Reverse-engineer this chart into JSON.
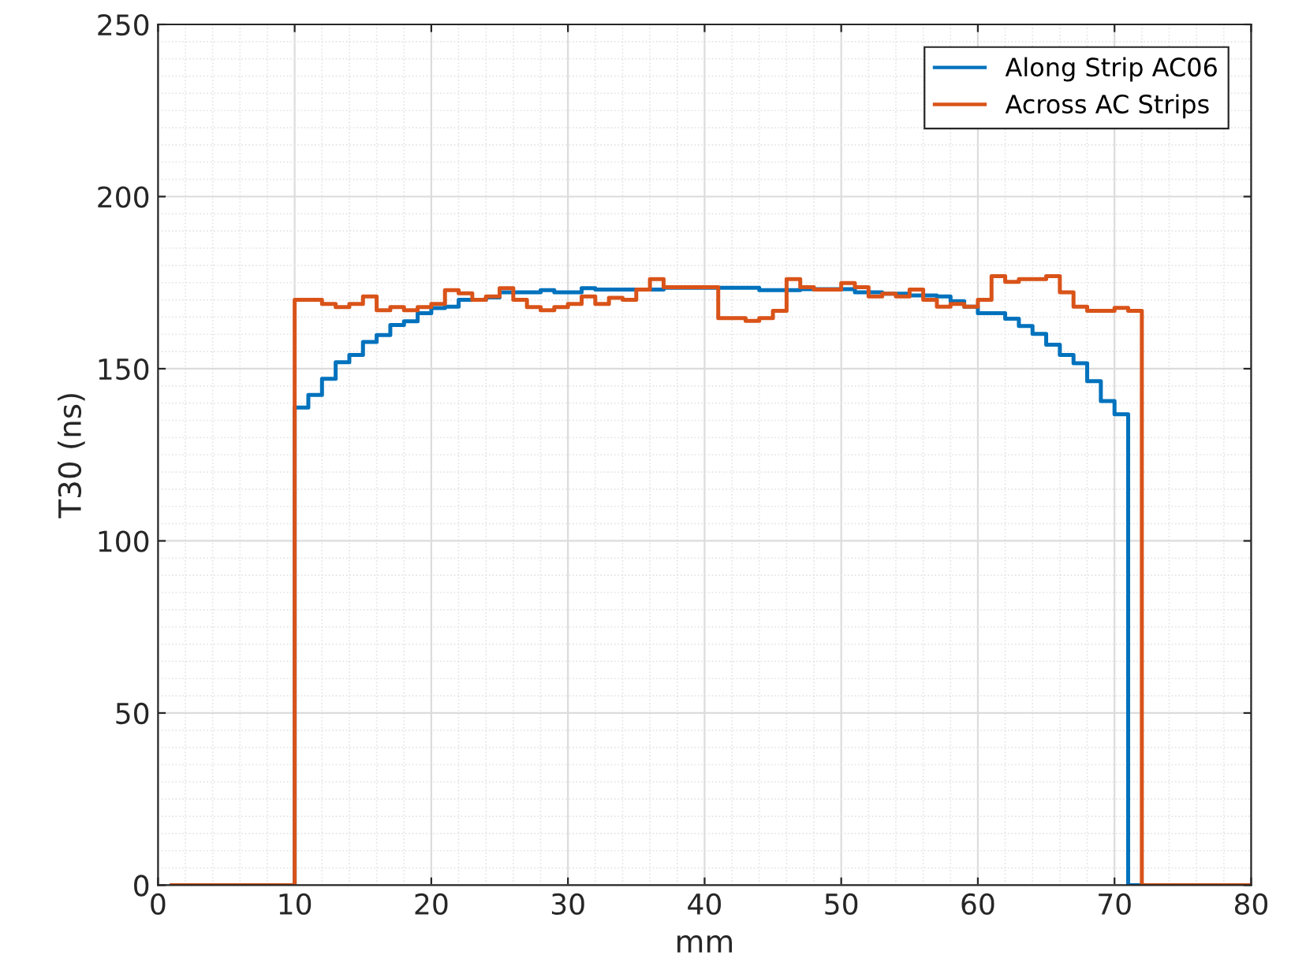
{
  "chart_data": {
    "type": "step",
    "xlabel": "mm",
    "ylabel": "T30 (ns)",
    "xlim": [
      0,
      80
    ],
    "xticks": [
      0,
      10,
      20,
      30,
      40,
      50,
      60,
      70,
      80
    ],
    "ylim": [
      0,
      250
    ],
    "yticks": [
      0,
      50,
      100,
      150,
      200,
      250
    ],
    "grid": true,
    "legend": "top right",
    "series": [
      {
        "name": "Along Strip AC06",
        "color": "#0072bd",
        "x": [
          1,
          10,
          11,
          12,
          13,
          14,
          15,
          16,
          17,
          18,
          19,
          20,
          21,
          22,
          23,
          24,
          25,
          26,
          27,
          28,
          29,
          30,
          31,
          32,
          33,
          34,
          35,
          36,
          37,
          38,
          39,
          40,
          41,
          42,
          43,
          44,
          45,
          46,
          47,
          48,
          49,
          50,
          51,
          52,
          53,
          54,
          55,
          56,
          57,
          58,
          59,
          60,
          61,
          62,
          63,
          64,
          65,
          66,
          67,
          68,
          69,
          70,
          71,
          80
        ],
        "values": [
          0,
          138.7,
          142.4,
          147.1,
          151.9,
          154.0,
          157.8,
          159.8,
          162.7,
          163.8,
          166.1,
          167.6,
          168.0,
          170.0,
          170.0,
          170.7,
          172.2,
          172.2,
          172.2,
          172.8,
          172.2,
          172.2,
          173.4,
          173.0,
          173.0,
          173.0,
          173.0,
          173.0,
          173.5,
          173.5,
          173.5,
          173.5,
          173.5,
          173.5,
          173.5,
          172.8,
          172.8,
          172.8,
          173.1,
          173.1,
          173.1,
          173.1,
          172.2,
          172.2,
          171.8,
          171.8,
          171.3,
          171.3,
          171.0,
          169.6,
          168.0,
          166.1,
          166.1,
          164.5,
          162.4,
          160.1,
          157.0,
          154.0,
          151.6,
          146.4,
          140.6,
          136.8,
          0,
          0
        ]
      },
      {
        "name": "Across AC Strips",
        "color": "#d95319",
        "x": [
          1,
          10,
          11,
          12,
          13,
          14,
          15,
          16,
          17,
          18,
          19,
          20,
          21,
          22,
          23,
          24,
          25,
          26,
          27,
          28,
          29,
          30,
          31,
          32,
          33,
          34,
          35,
          36,
          37,
          38,
          39,
          40,
          41,
          42,
          43,
          44,
          45,
          46,
          47,
          48,
          49,
          50,
          51,
          52,
          53,
          54,
          55,
          56,
          57,
          58,
          59,
          60,
          61,
          62,
          63,
          64,
          65,
          66,
          67,
          68,
          69,
          70,
          71,
          72,
          80
        ],
        "values": [
          0,
          170.0,
          170.0,
          168.8,
          167.9,
          168.8,
          171.0,
          167.0,
          167.9,
          167.0,
          167.9,
          168.8,
          172.8,
          171.9,
          170.0,
          171.0,
          173.4,
          170.0,
          167.9,
          167.0,
          167.9,
          168.8,
          171.0,
          168.8,
          170.6,
          170.0,
          173.0,
          176.0,
          173.7,
          173.7,
          173.7,
          173.7,
          164.7,
          164.7,
          163.9,
          164.7,
          166.8,
          176.0,
          173.7,
          173.0,
          173.0,
          174.9,
          173.7,
          171.0,
          171.8,
          171.0,
          173.0,
          170.0,
          168.0,
          168.8,
          168.0,
          170.0,
          176.9,
          175.2,
          176.0,
          176.0,
          176.9,
          172.2,
          168.0,
          166.8,
          166.8,
          167.7,
          166.8,
          0,
          0
        ]
      }
    ]
  }
}
